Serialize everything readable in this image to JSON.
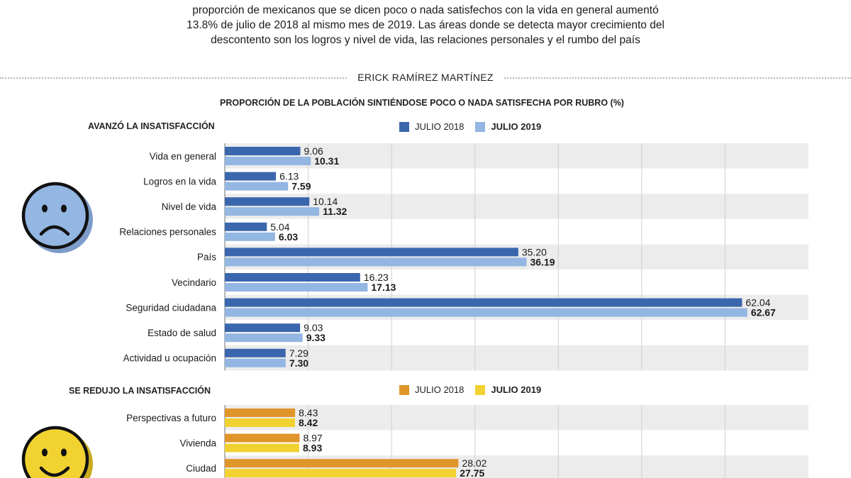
{
  "intro": {
    "lines": [
      "proporción de mexicanos que se dicen poco o nada satisfechos con la vida en general aumentó",
      "13.8% de julio de 2018 al mismo mes de 2019. Las áreas donde se detecta mayor crecimiento del",
      "descontento son los logros y nivel de vida, las relaciones personales y el rumbo del país"
    ]
  },
  "author": "ERICK RAMÍREZ MARTÍNEZ",
  "icons": {
    "sad_face": "sad-face-icon",
    "happy_face": "happy-face-icon"
  },
  "chart_data": [
    {
      "type": "bar",
      "orientation": "horizontal",
      "title": "PROPORCIÓN DE LA POBLACIÓN SINTIÉNDOSE POCO O NADA SATISFECHA POR RUBRO (%)",
      "section_title": "AVANZÓ LA INSATISFACCIÓN",
      "categories": [
        "Vida en general",
        "Logros en la vida",
        "Nivel de vida",
        "Relaciones personales",
        "País",
        "Vecindario",
        "Seguridad ciudadana",
        "Estado de salud",
        "Actividad u ocupación"
      ],
      "series": [
        {
          "name": "JULIO 2018",
          "color": "#3a66ad",
          "values": [
            9.06,
            6.13,
            10.14,
            5.04,
            35.2,
            16.23,
            62.04,
            9.03,
            7.29
          ]
        },
        {
          "name": "JULIO 2019",
          "color": "#93b6e2",
          "values": [
            10.31,
            7.59,
            11.32,
            6.03,
            36.19,
            17.13,
            62.67,
            9.33,
            7.3
          ]
        }
      ],
      "xlim": [
        0,
        70
      ],
      "grid": true,
      "legend": "top"
    },
    {
      "type": "bar",
      "orientation": "horizontal",
      "section_title": "SE REDUJO LA INSATISFACCIÓN",
      "categories": [
        "Perspectivas a futuro",
        "Vivienda",
        "Ciudad"
      ],
      "series": [
        {
          "name": "JULIO 2018",
          "color": "#e0952a",
          "values": [
            8.43,
            8.97,
            28.02
          ]
        },
        {
          "name": "JULIO 2019",
          "color": "#f2d231",
          "values": [
            8.42,
            8.93,
            27.75
          ]
        }
      ],
      "xlim": [
        0,
        70
      ],
      "grid": true,
      "legend": "top"
    }
  ]
}
